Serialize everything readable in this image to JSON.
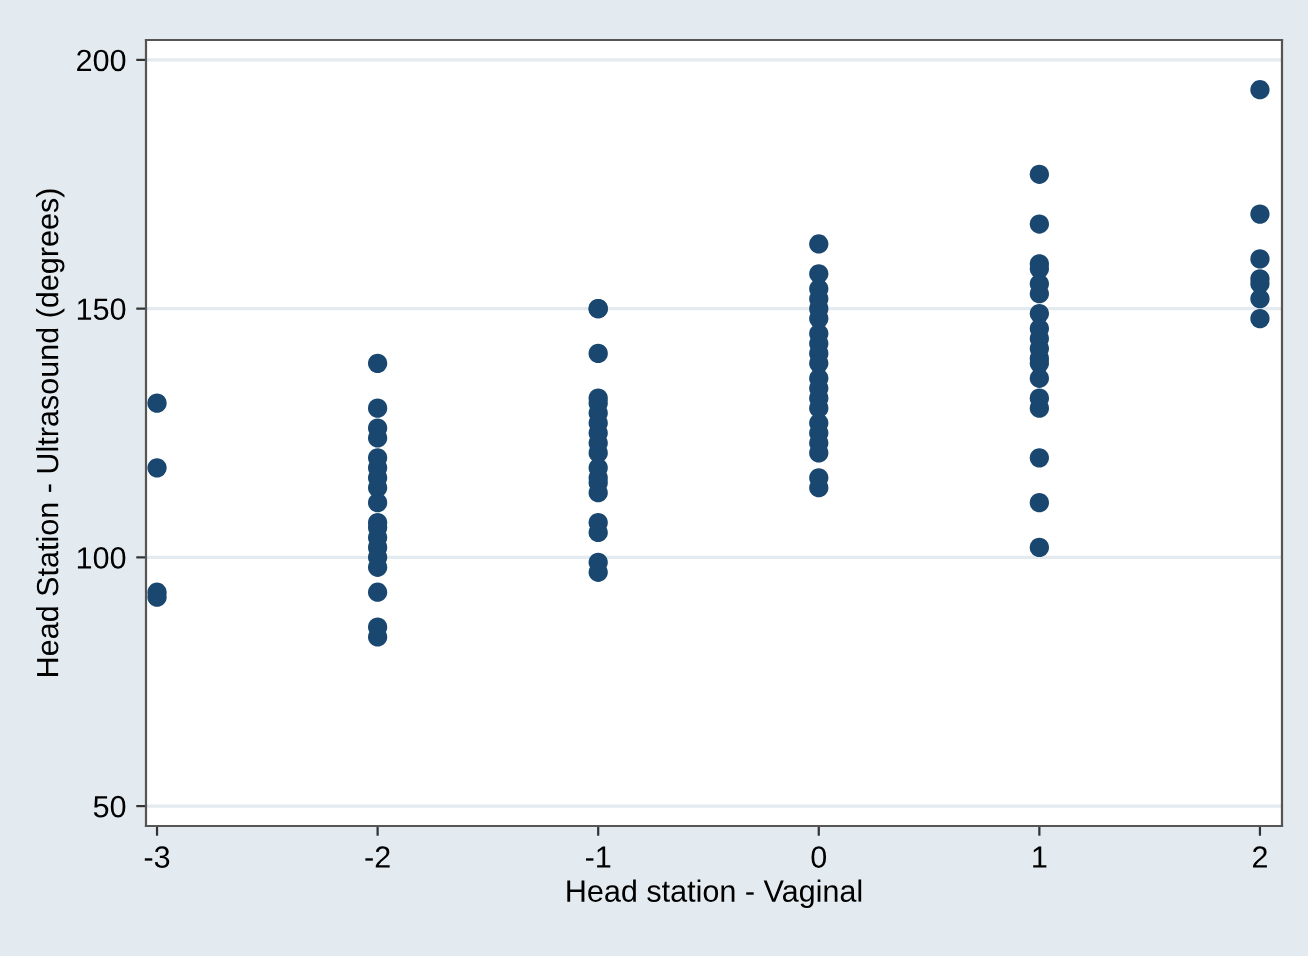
{
  "chart_data": {
    "type": "scatter",
    "xlabel": "Head station - Vaginal",
    "ylabel": "Head Station - Ultrasound (degrees)",
    "xlim": [
      -3.05,
      2.1
    ],
    "ylim": [
      46,
      204
    ],
    "xticks": [
      -3,
      -2,
      -1,
      0,
      1,
      2
    ],
    "yticks": [
      50,
      100,
      150,
      200
    ],
    "grid": "y",
    "marker": "circle",
    "series": [
      {
        "color": "#1a476f",
        "x": [
          -3,
          -3,
          -3,
          -3,
          -2,
          -2,
          -2,
          -2,
          -2,
          -2,
          -2,
          -2,
          -2,
          -2,
          -2,
          -2,
          -2,
          -2,
          -2,
          -2,
          -2,
          -2,
          -1,
          -1,
          -1,
          -1,
          -1,
          -1,
          -1,
          -1,
          -1,
          -1,
          -1,
          -1,
          -1,
          -1,
          -1,
          -1,
          -1,
          -1,
          0,
          0,
          0,
          0,
          0,
          0,
          0,
          0,
          0,
          0,
          0,
          0,
          0,
          0,
          0,
          0,
          0,
          0,
          0,
          0,
          1,
          1,
          1,
          1,
          1,
          1,
          1,
          1,
          1,
          1,
          1,
          1,
          1,
          1,
          1,
          1,
          1,
          1,
          2,
          2,
          2,
          2,
          2,
          2,
          2
        ],
        "values": [
          131,
          118,
          93,
          92,
          139,
          130,
          126,
          124,
          120,
          118,
          116,
          114,
          111,
          107,
          106,
          104,
          102,
          100,
          98,
          93,
          86,
          84,
          150,
          150,
          141,
          132,
          131,
          129,
          127,
          125,
          123,
          121,
          118,
          116,
          115,
          113,
          107,
          105,
          99,
          97,
          163,
          157,
          154,
          152,
          150,
          148,
          145,
          143,
          141,
          139,
          136,
          134,
          132,
          130,
          127,
          125,
          123,
          121,
          116,
          114,
          177,
          167,
          159,
          158,
          155,
          153,
          149,
          146,
          144,
          142,
          140,
          139,
          136,
          132,
          130,
          120,
          111,
          102,
          194,
          169,
          160,
          156,
          155,
          152,
          148
        ]
      }
    ]
  }
}
